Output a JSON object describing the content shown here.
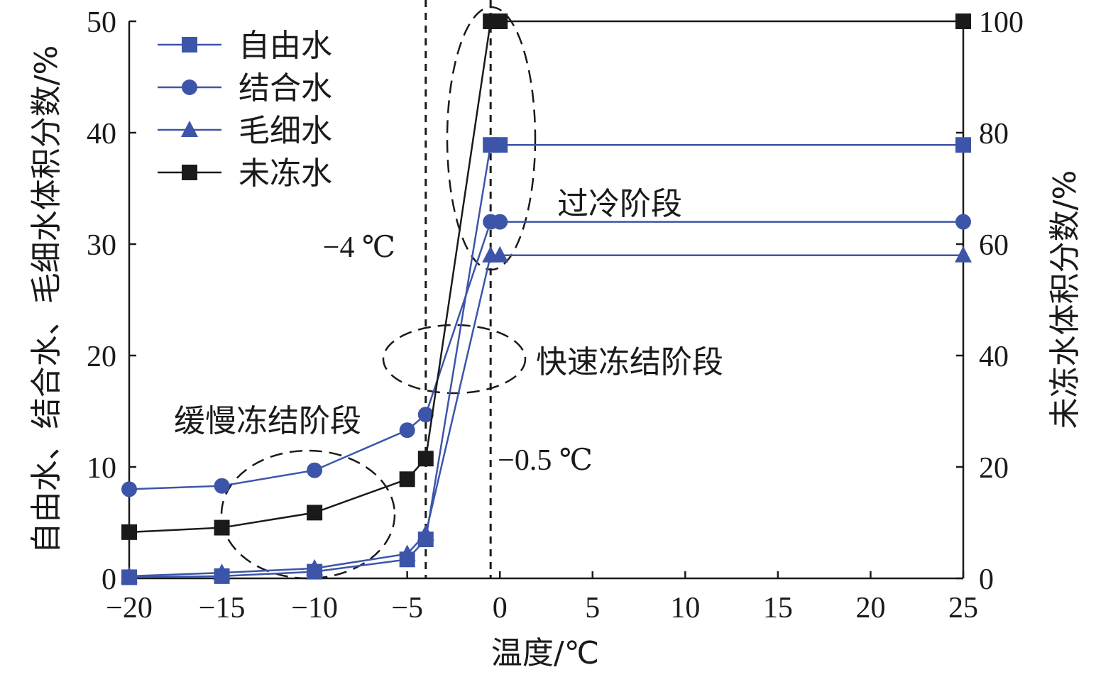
{
  "chart_data": {
    "type": "line",
    "xlabel": "温度/℃",
    "ylabel_left": "自由水、结合水、毛细水体积分数/%",
    "ylabel_right": "未冻水体积分数/%",
    "xlim": [
      -20,
      25
    ],
    "ylim_left": [
      0,
      50
    ],
    "ylim_right": [
      0,
      100
    ],
    "x_ticks": [
      "−20",
      "−15",
      "−10",
      "−5",
      "0",
      "5",
      "10",
      "15",
      "20",
      "25"
    ],
    "x_tick_values": [
      -20,
      -15,
      -10,
      -5,
      0,
      5,
      10,
      15,
      20,
      25
    ],
    "y_left_ticks": [
      "0",
      "10",
      "20",
      "30",
      "40",
      "50"
    ],
    "y_left_tick_values": [
      0,
      10,
      20,
      30,
      40,
      50
    ],
    "y_right_ticks": [
      "0",
      "20",
      "40",
      "60",
      "80",
      "100"
    ],
    "y_right_tick_values": [
      0,
      20,
      40,
      60,
      80,
      100
    ],
    "grid": false,
    "legend_position": "top-left",
    "series": [
      {
        "name": "自由水",
        "axis": "left",
        "marker": "square",
        "color": "#3d55a8",
        "x": [
          -20,
          -15,
          -10,
          -5,
          -4,
          -0.5,
          0,
          25
        ],
        "y": [
          0.1,
          0.2,
          0.6,
          1.7,
          3.5,
          38.9,
          38.9,
          38.9
        ]
      },
      {
        "name": "结合水",
        "axis": "left",
        "marker": "circle",
        "color": "#3d55a8",
        "x": [
          -20,
          -15,
          -10,
          -5,
          -4,
          -0.5,
          0,
          25
        ],
        "y": [
          8.0,
          8.3,
          9.7,
          13.3,
          14.7,
          32.0,
          32.0,
          32.0
        ]
      },
      {
        "name": "毛细水",
        "axis": "left",
        "marker": "triangle",
        "color": "#3d55a8",
        "x": [
          -20,
          -15,
          -10,
          -5,
          -4,
          -0.5,
          0,
          25
        ],
        "y": [
          0.2,
          0.5,
          0.9,
          2.2,
          4.0,
          29.0,
          29.0,
          29.0
        ]
      },
      {
        "name": "未冻水",
        "axis": "right",
        "marker": "square",
        "color": "#1a1a1a",
        "x": [
          -20,
          -15,
          -10,
          -5,
          -4,
          -0.5,
          0,
          25
        ],
        "y": [
          8.3,
          9.1,
          11.8,
          17.8,
          21.5,
          100,
          100,
          100
        ]
      }
    ],
    "vlines": [
      {
        "x": -4,
        "label": "−4 ℃"
      },
      {
        "x": -0.5,
        "label": "−0.5 ℃"
      }
    ],
    "annotations": {
      "slow": "缓慢冻结阶段",
      "fast": "快速冻结阶段",
      "super": "过冷阶段"
    }
  }
}
